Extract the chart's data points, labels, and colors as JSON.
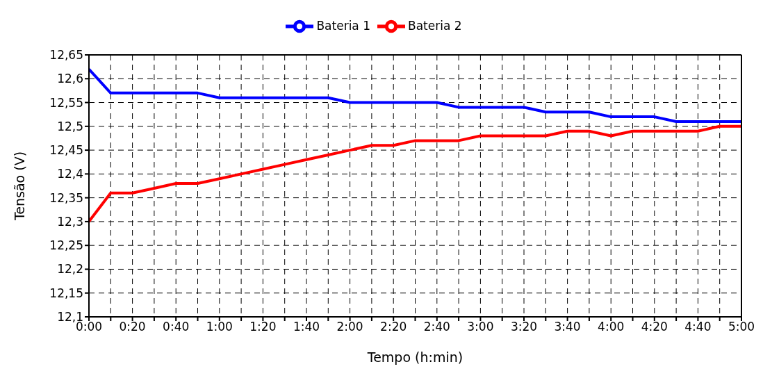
{
  "chart_data": {
    "type": "line",
    "xlabel": "Tempo (h:min)",
    "ylabel": "Tensão (V)",
    "categories": [
      "0:00",
      null,
      "0:20",
      null,
      "0:40",
      null,
      "1:00",
      null,
      "1:20",
      null,
      "1:40",
      null,
      "2:00",
      null,
      "2:20",
      null,
      "2:40",
      null,
      "3:00",
      null,
      "3:20",
      null,
      "3:40",
      null,
      "4:00",
      null,
      "4:20",
      null,
      "4:40",
      null,
      "5:00"
    ],
    "series": [
      {
        "name": "Bateria 1",
        "color": "#0000ff",
        "values": [
          12.62,
          12.57,
          12.57,
          12.57,
          12.57,
          12.57,
          12.56,
          12.56,
          12.56,
          12.56,
          12.56,
          12.56,
          12.55,
          12.55,
          12.55,
          12.55,
          12.55,
          12.54,
          12.54,
          12.54,
          12.54,
          12.53,
          12.53,
          12.53,
          12.52,
          12.52,
          12.52,
          12.51,
          12.51,
          12.51,
          12.51
        ]
      },
      {
        "name": "Bateria 2",
        "color": "#ff0000",
        "values": [
          12.3,
          12.36,
          12.36,
          12.37,
          12.38,
          12.38,
          12.39,
          12.4,
          12.41,
          12.42,
          12.43,
          12.44,
          12.45,
          12.46,
          12.46,
          12.47,
          12.47,
          12.47,
          12.48,
          12.48,
          12.48,
          12.48,
          12.49,
          12.49,
          12.48,
          12.49,
          12.49,
          12.49,
          12.49,
          12.5,
          12.5
        ]
      }
    ],
    "ylim": [
      12.1,
      12.65
    ],
    "yticks": [
      {
        "value": 12.1,
        "label": "12,1"
      },
      {
        "value": 12.15,
        "label": "12,15"
      },
      {
        "value": 12.2,
        "label": "12,2"
      },
      {
        "value": 12.25,
        "label": "12,25"
      },
      {
        "value": 12.3,
        "label": "12,3"
      },
      {
        "value": 12.35,
        "label": "12,35"
      },
      {
        "value": 12.4,
        "label": "12,4"
      },
      {
        "value": 12.45,
        "label": "12,45"
      },
      {
        "value": 12.5,
        "label": "12,5"
      },
      {
        "value": 12.55,
        "label": "12,55"
      },
      {
        "value": 12.6,
        "label": "12,6"
      },
      {
        "value": 12.65,
        "label": "12,65"
      }
    ],
    "grid": true,
    "legend": "top",
    "marker": "none",
    "line_style": "solid"
  }
}
